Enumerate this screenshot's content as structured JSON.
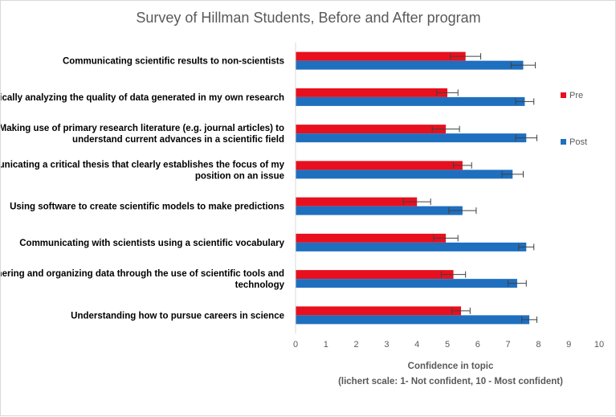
{
  "chart_data": {
    "type": "bar",
    "orientation": "horizontal",
    "title": "Survey of Hillman Students, Before and After program",
    "xlabel": "Confidence in topic",
    "xlabel_note": "(lichert scale: 1- Not confident, 10 - Most confident)",
    "ylabel": "",
    "xlim": [
      0,
      10
    ],
    "xticks": [
      "0",
      "1",
      "2",
      "3",
      "4",
      "5",
      "6",
      "7",
      "8",
      "9",
      "10"
    ],
    "grid": false,
    "legend_position": "right",
    "categories": [
      [
        "Communicating scientific results to non-scientists"
      ],
      [
        "Critically analyzing the quality of data generated in my own research"
      ],
      [
        "Making use of primary research literature (e.g. journal articles) to",
        "understand current advances in a scientific field"
      ],
      [
        "Communicating a critical thesis that clearly establishes the focus of my",
        "position on an issue"
      ],
      [
        "Using software to create scientific models to make predictions"
      ],
      [
        "Communicating with scientists using a scientific vocabulary"
      ],
      [
        "Gathering and organizing data through the use of scientific tools and",
        "technology"
      ],
      [
        "Understanding how to pursue careers in science"
      ]
    ],
    "series": [
      {
        "name": "Pre",
        "color": "#e8101e",
        "values": [
          5.6,
          5.0,
          4.95,
          5.5,
          4.0,
          4.95,
          5.2,
          5.45
        ],
        "errors": [
          0.5,
          0.35,
          0.45,
          0.3,
          0.45,
          0.4,
          0.4,
          0.3
        ]
      },
      {
        "name": "Post",
        "color": "#1f6fbf",
        "values": [
          7.5,
          7.55,
          7.6,
          7.15,
          5.5,
          7.6,
          7.3,
          7.7
        ],
        "errors": [
          0.4,
          0.3,
          0.35,
          0.35,
          0.45,
          0.25,
          0.3,
          0.25
        ]
      }
    ]
  }
}
